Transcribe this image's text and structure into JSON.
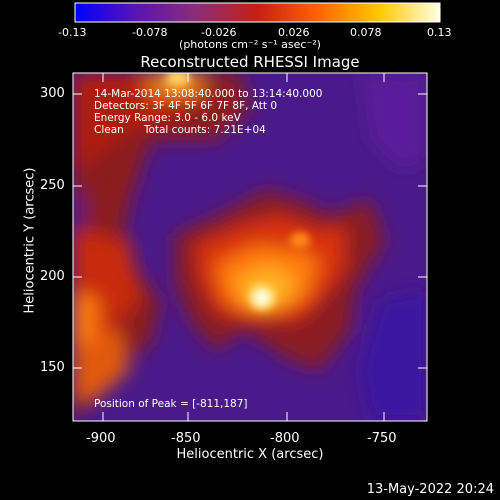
{
  "colorbar": {
    "tick_labels": [
      "-0.13",
      "-0.078",
      "-0.026",
      "0.026",
      "0.078",
      "0.13"
    ],
    "units": "(photons cm⁻² s⁻¹ asec⁻²)",
    "colors": [
      "#0000ff",
      "#5a14b4",
      "#8c2d78",
      "#c81e14",
      "#ff6400",
      "#ffc800",
      "#ffffe6"
    ]
  },
  "title": "Reconstructed RHESSI Image",
  "info_lines": [
    "14-Mar-2014 13:08:40.000 to 13:14:40.000",
    "Detectors: 3F 4F 5F 6F 7F 8F, Att 0",
    "Energy Range: 3.0 - 6.0 keV",
    "Clean      Total counts: 7.21E+04"
  ],
  "peak_label": "Position of Peak = [-811,187]",
  "x_axis": {
    "label": "Heliocentric X (arcsec)",
    "ticks": [
      "-900",
      "-850",
      "-800",
      "-750"
    ]
  },
  "y_axis": {
    "label": "Heliocentric Y (arcsec)",
    "ticks": [
      "300",
      "250",
      "200",
      "150"
    ]
  },
  "timestamp": "13-May-2022 20:24"
}
